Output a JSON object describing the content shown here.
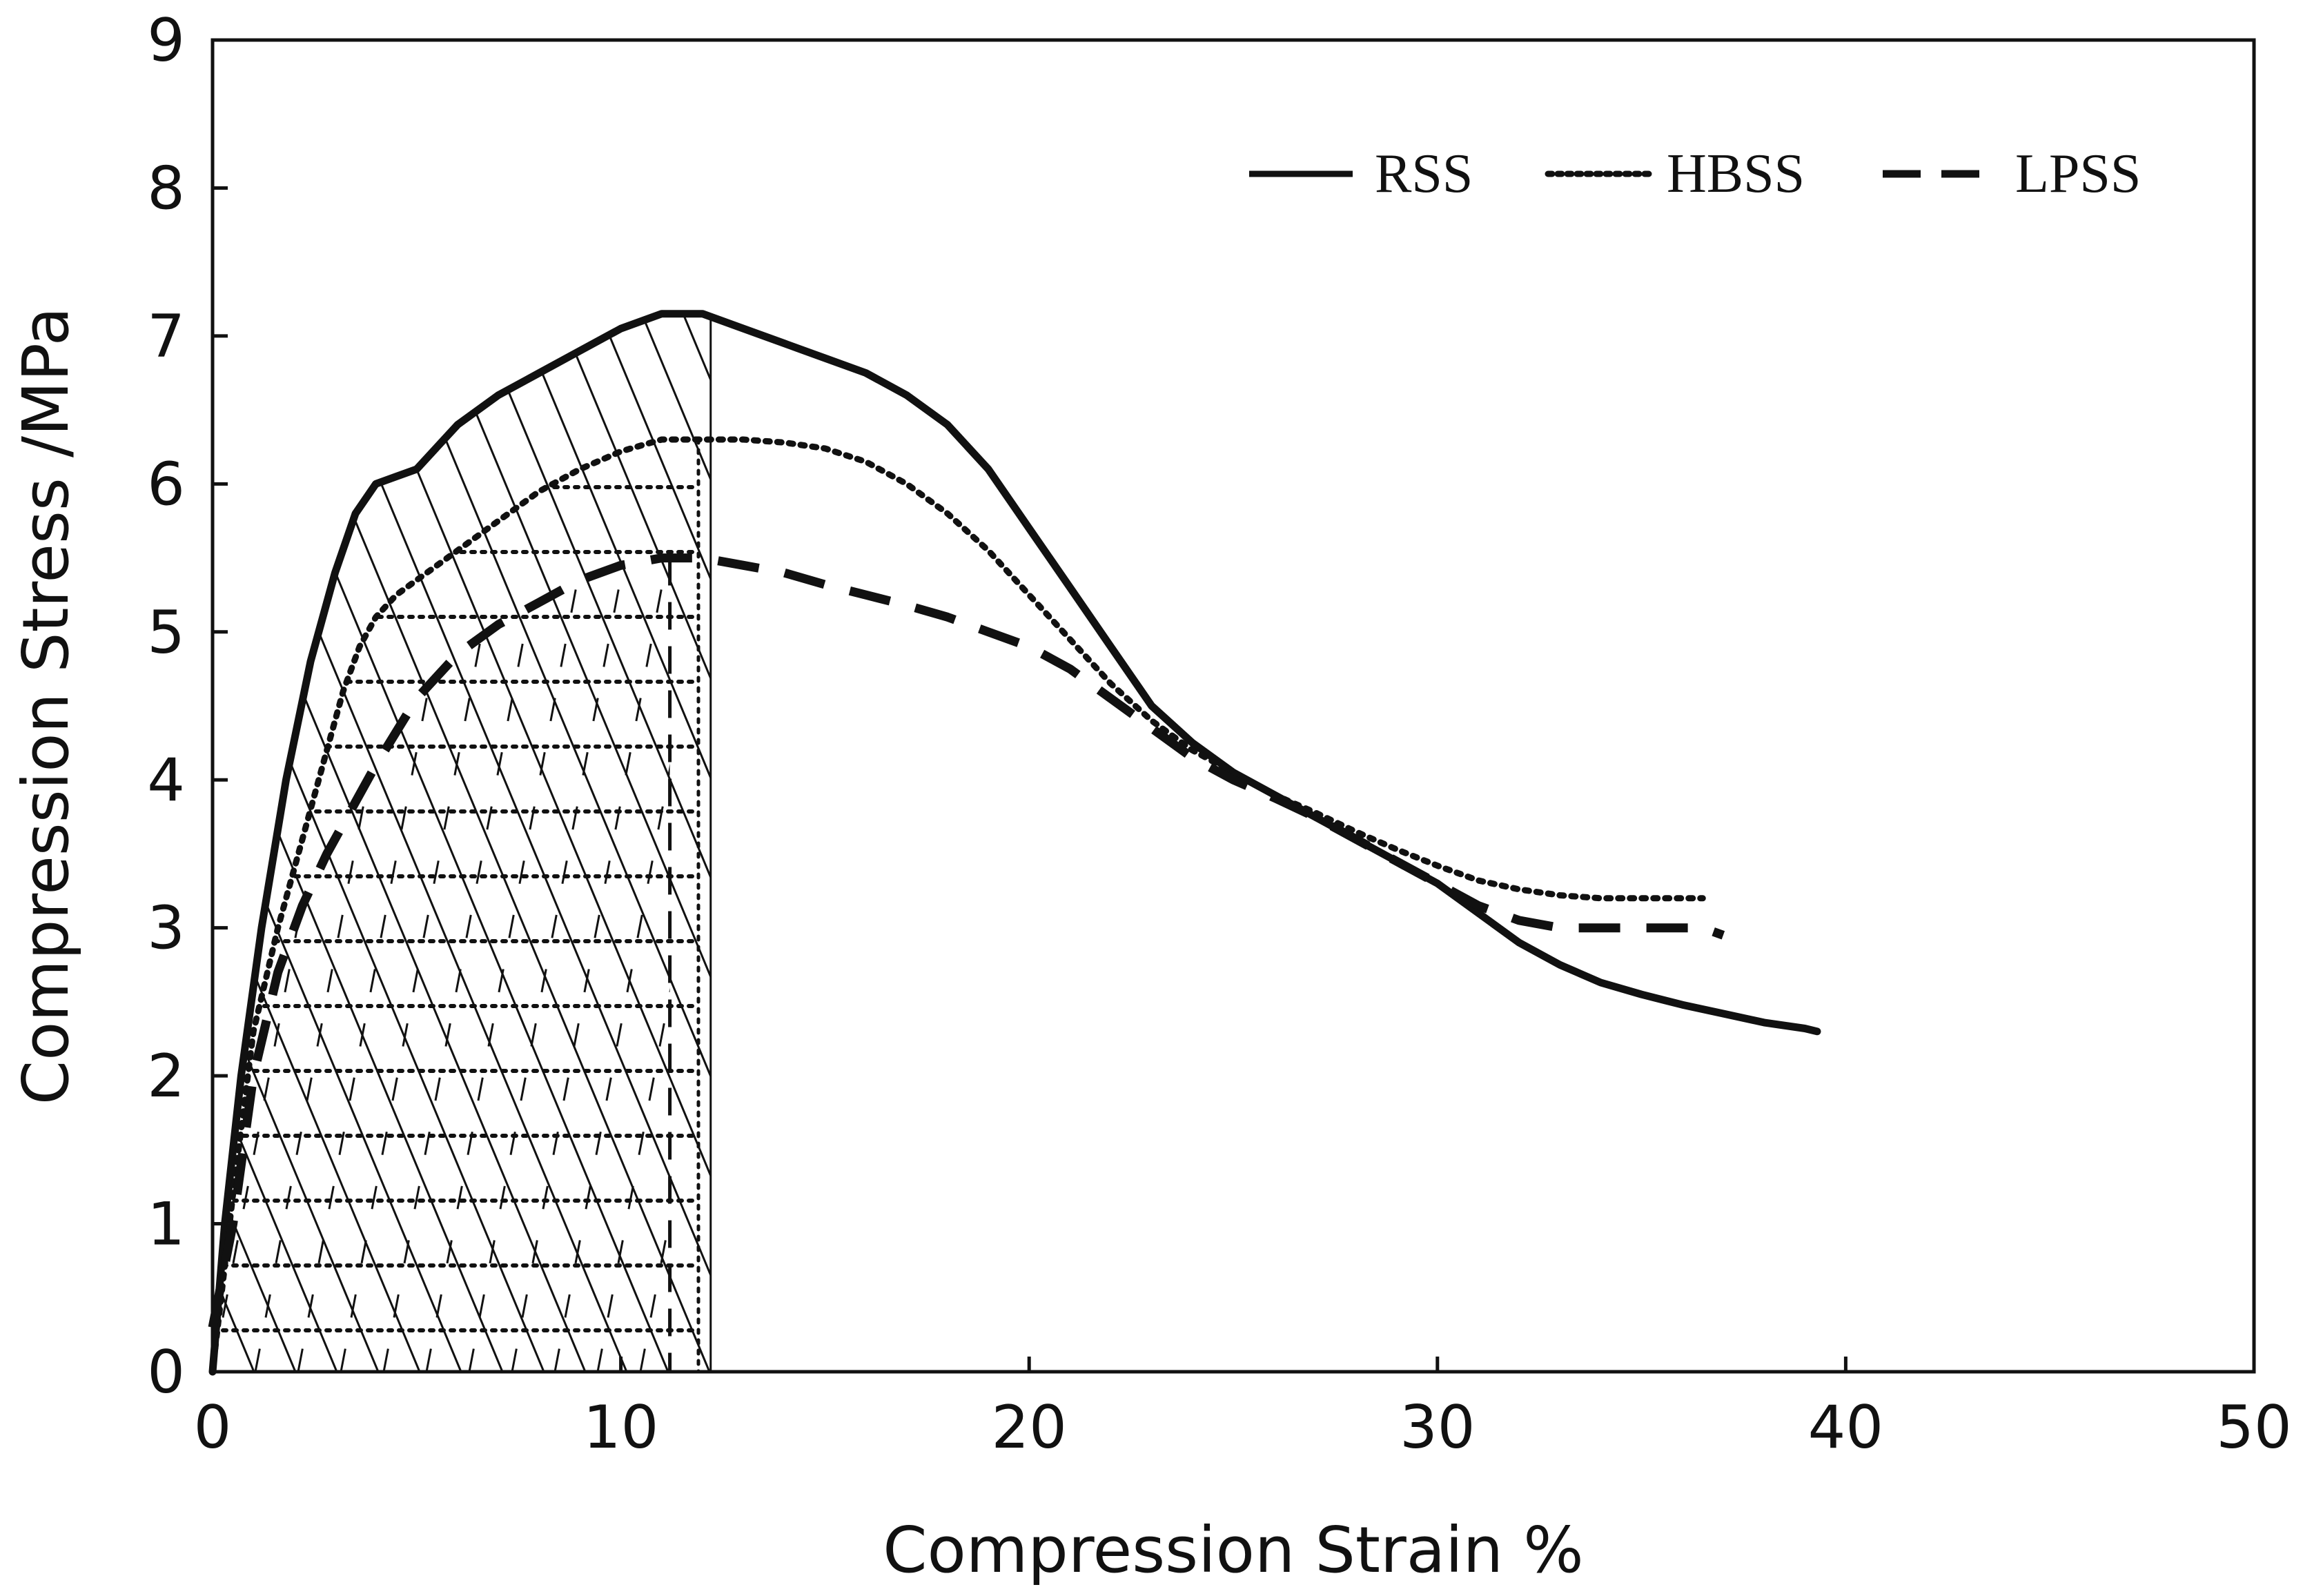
{
  "chart_data": {
    "type": "line",
    "title": "",
    "xlabel": "Compression Strain %",
    "ylabel": "Compression Stress /MPa",
    "xlim": [
      0,
      50
    ],
    "ylim": [
      0,
      9
    ],
    "xticks": [
      0,
      10,
      20,
      30,
      40,
      50
    ],
    "yticks": [
      0,
      1,
      2,
      3,
      4,
      5,
      6,
      7,
      8,
      9
    ],
    "grid": false,
    "legend_position": "top-right",
    "series": [
      {
        "name": "RSS",
        "style": "solid",
        "color": "#111111",
        "x": [
          0,
          0.3,
          0.7,
          1.2,
          1.8,
          2.4,
          3.0,
          3.5,
          4.0,
          4.5,
          5.0,
          5.5,
          6.0,
          7.0,
          8.0,
          9.0,
          10.0,
          11.0,
          11.5,
          12.0,
          13.0,
          14.0,
          15.0,
          16.0,
          17.0,
          18.0,
          19.0,
          20.0,
          21.0,
          22.0,
          23.0,
          24.0,
          25.0,
          26.0,
          27.0,
          28.0,
          29.0,
          30.0,
          31.0,
          32.0,
          33.0,
          34.0,
          35.0,
          36.0,
          37.0,
          38.0,
          39.0,
          39.3
        ],
        "y": [
          0,
          1.0,
          2.0,
          3.0,
          4.0,
          4.8,
          5.4,
          5.8,
          6.0,
          6.05,
          6.1,
          6.25,
          6.4,
          6.6,
          6.75,
          6.9,
          7.05,
          7.15,
          7.15,
          7.15,
          7.05,
          6.95,
          6.85,
          6.75,
          6.6,
          6.4,
          6.1,
          5.7,
          5.3,
          4.9,
          4.5,
          4.25,
          4.05,
          3.9,
          3.75,
          3.6,
          3.45,
          3.3,
          3.1,
          2.9,
          2.75,
          2.63,
          2.55,
          2.48,
          2.42,
          2.36,
          2.32,
          2.3
        ]
      },
      {
        "name": "HBSS",
        "style": "dotted",
        "color": "#111111",
        "x": [
          0,
          0.5,
          1.0,
          1.6,
          2.2,
          2.8,
          3.2,
          3.6,
          4.0,
          4.5,
          5.0,
          6.0,
          7.0,
          8.0,
          9.0,
          10.0,
          11.0,
          12.0,
          13.0,
          14.0,
          15.0,
          16.0,
          17.0,
          18.0,
          19.0,
          20.0,
          21.0,
          22.0,
          23.0,
          24.0,
          25.0,
          26.0,
          27.0,
          28.0,
          29.0,
          30.0,
          31.0,
          32.0,
          33.0,
          34.0,
          35.0,
          36.0,
          36.5
        ],
        "y": [
          0,
          1.2,
          2.3,
          3.0,
          3.6,
          4.2,
          4.6,
          4.9,
          5.1,
          5.25,
          5.35,
          5.55,
          5.75,
          5.95,
          6.1,
          6.22,
          6.3,
          6.3,
          6.3,
          6.28,
          6.24,
          6.15,
          6.0,
          5.8,
          5.55,
          5.25,
          4.95,
          4.65,
          4.4,
          4.2,
          4.05,
          3.9,
          3.78,
          3.65,
          3.53,
          3.42,
          3.32,
          3.26,
          3.22,
          3.2,
          3.2,
          3.2,
          3.2
        ]
      },
      {
        "name": "LPSS",
        "style": "dashed",
        "color": "#111111",
        "x": [
          0,
          0.5,
          1.0,
          1.6,
          2.2,
          2.8,
          3.4,
          4.0,
          5.0,
          6.0,
          7.0,
          8.0,
          9.0,
          10.0,
          11.0,
          12.0,
          13.0,
          14.0,
          15.0,
          16.0,
          17.0,
          18.0,
          19.0,
          20.0,
          21.0,
          22.0,
          23.0,
          24.0,
          25.0,
          26.0,
          27.0,
          28.0,
          29.0,
          30.0,
          31.0,
          32.0,
          33.0,
          34.0,
          35.0,
          36.0,
          36.5,
          37.0
        ],
        "y": [
          0.3,
          1.0,
          2.0,
          2.7,
          3.15,
          3.5,
          3.8,
          4.1,
          4.55,
          4.85,
          5.05,
          5.2,
          5.35,
          5.45,
          5.5,
          5.5,
          5.45,
          5.4,
          5.32,
          5.25,
          5.18,
          5.1,
          5.0,
          4.9,
          4.75,
          4.55,
          4.35,
          4.15,
          4.0,
          3.88,
          3.75,
          3.6,
          3.45,
          3.3,
          3.15,
          3.05,
          3.0,
          3.0,
          3.0,
          3.0,
          3.0,
          2.95
        ]
      }
    ],
    "annotations": [
      {
        "type": "hatched_region",
        "pattern": "diagonal",
        "series": "RSS",
        "x_range": [
          0,
          12.2
        ]
      },
      {
        "type": "hatched_region",
        "pattern": "horizontal-dotted",
        "series": "HBSS",
        "x_range": [
          0,
          11.9
        ]
      },
      {
        "type": "hatched_region",
        "pattern": "short-dash",
        "series": "LPSS",
        "x_range": [
          0,
          11.2
        ]
      }
    ]
  }
}
